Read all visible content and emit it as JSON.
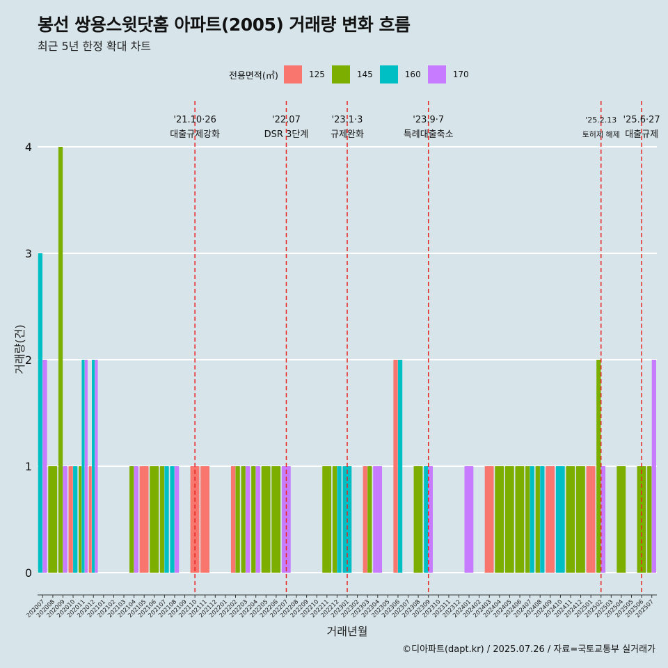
{
  "title": "봉선 쌍용스윗닷홈 아파트(2005) 거래량 변화 흐름",
  "subtitle": "최근 5년 한정 확대 차트",
  "caption": "©디아파트(dapt.kr) / 2025.07.26 / 자료=국토교통부 실거래가",
  "legend": {
    "title": "전용면적(㎡)",
    "items": [
      {
        "label": "125",
        "color": "#f8766d"
      },
      {
        "label": "145",
        "color": "#7cae00"
      },
      {
        "label": "160",
        "color": "#00bfc4"
      },
      {
        "label": "170",
        "color": "#c77cff"
      }
    ]
  },
  "chart_data": {
    "type": "bar",
    "xlabel": "거래년월",
    "ylabel": "거래량(건)",
    "ylim": [
      0,
      4
    ],
    "yticks": [
      0,
      1,
      2,
      3,
      4
    ],
    "grid": true,
    "legend_position": "top",
    "categories": [
      "202007",
      "202008",
      "202009",
      "202010",
      "202011",
      "202012",
      "202101",
      "202102",
      "202103",
      "202104",
      "202105",
      "202106",
      "202107",
      "202108",
      "202109",
      "202110",
      "202111",
      "202112",
      "202201",
      "202202",
      "202203",
      "202204",
      "202205",
      "202206",
      "202207",
      "202208",
      "202209",
      "202210",
      "202211",
      "202212",
      "202301",
      "202302",
      "202303",
      "202304",
      "202305",
      "202306",
      "202307",
      "202308",
      "202309",
      "202310",
      "202311",
      "202312",
      "202401",
      "202402",
      "202403",
      "202404",
      "202405",
      "202406",
      "202407",
      "202408",
      "202409",
      "202410",
      "202411",
      "202412",
      "202501",
      "202502",
      "202503",
      "202504",
      "202505",
      "202506",
      "202507"
    ],
    "series": [
      {
        "name": "125",
        "values": [
          0,
          0,
          0,
          1,
          0,
          1,
          0,
          0,
          0,
          0,
          1,
          0,
          0,
          0,
          0,
          1,
          1,
          0,
          0,
          1,
          0,
          0,
          0,
          0,
          0,
          0,
          0,
          0,
          0,
          0,
          0,
          0,
          1,
          0,
          0,
          2,
          0,
          0,
          0,
          0,
          0,
          0,
          0,
          0,
          1,
          0,
          0,
          0,
          0,
          0,
          1,
          0,
          0,
          0,
          1,
          0,
          0,
          0,
          0,
          0,
          0
        ]
      },
      {
        "name": "145",
        "values": [
          0,
          1,
          4,
          0,
          1,
          0,
          0,
          0,
          0,
          1,
          0,
          1,
          1,
          0,
          0,
          0,
          0,
          0,
          0,
          1,
          1,
          1,
          1,
          1,
          0,
          0,
          0,
          0,
          1,
          1,
          0,
          0,
          1,
          0,
          0,
          0,
          0,
          1,
          0,
          0,
          0,
          0,
          0,
          0,
          0,
          1,
          1,
          1,
          1,
          1,
          0,
          0,
          1,
          1,
          0,
          2,
          0,
          1,
          0,
          1,
          1
        ]
      },
      {
        "name": "160",
        "values": [
          3,
          0,
          0,
          1,
          2,
          2,
          0,
          0,
          0,
          0,
          0,
          0,
          1,
          1,
          0,
          0,
          0,
          0,
          0,
          0,
          0,
          0,
          0,
          0,
          0,
          0,
          0,
          0,
          0,
          1,
          1,
          0,
          0,
          0,
          0,
          2,
          0,
          0,
          1,
          0,
          0,
          0,
          0,
          0,
          0,
          0,
          0,
          0,
          1,
          1,
          0,
          1,
          0,
          0,
          0,
          0,
          0,
          0,
          0,
          0,
          0
        ]
      },
      {
        "name": "170",
        "values": [
          2,
          0,
          1,
          0,
          2,
          2,
          0,
          0,
          0,
          1,
          0,
          0,
          0,
          1,
          0,
          0,
          0,
          0,
          0,
          0,
          1,
          1,
          0,
          0,
          1,
          0,
          0,
          0,
          0,
          0,
          0,
          0,
          0,
          1,
          0,
          0,
          0,
          0,
          1,
          0,
          0,
          0,
          1,
          0,
          0,
          0,
          0,
          0,
          0,
          0,
          0,
          0,
          0,
          0,
          0,
          1,
          0,
          0,
          0,
          0,
          2
        ]
      }
    ],
    "events": [
      {
        "category": "202110",
        "date": "'21.10·26",
        "label": "대출규제강화"
      },
      {
        "category": "202207",
        "date": "'22.07",
        "label": "DSR 3단계"
      },
      {
        "category": "202301",
        "date": "'23.1·3",
        "label": "규제완화"
      },
      {
        "category": "202309",
        "date": "'23.9·7",
        "label": "특례대출축소"
      },
      {
        "category": "202502",
        "date": "'25.2.13",
        "label": "토허제 해제"
      },
      {
        "category": "202506",
        "date": "'25.6·27",
        "label": "대출규제"
      }
    ]
  }
}
